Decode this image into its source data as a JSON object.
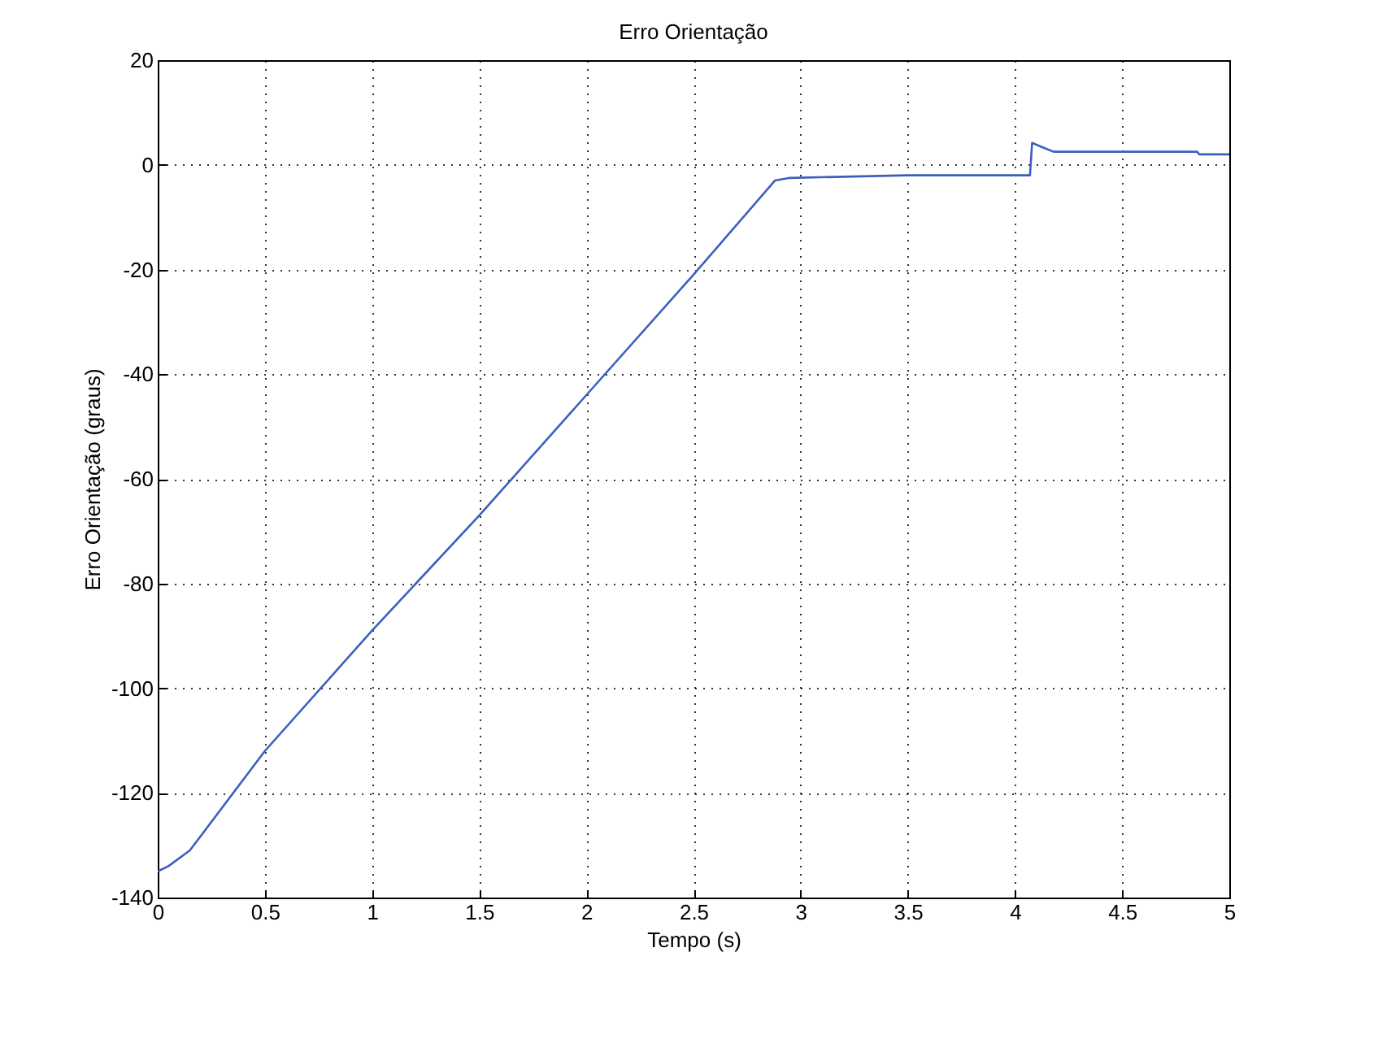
{
  "chart_data": {
    "type": "line",
    "title": "Erro Orientação",
    "xlabel": "Tempo (s)",
    "ylabel": "Erro Orientação (graus)",
    "series": [
      {
        "color": "#3b5fbf",
        "x": [
          0,
          0.05,
          0.15,
          0.5,
          1,
          1.5,
          2,
          2.5,
          2.88,
          2.95,
          3.5,
          4.05,
          4.07,
          4.08,
          4.12,
          4.18,
          4.85,
          4.86,
          5
        ],
        "values": [
          -135,
          -134,
          -131,
          -112,
          -89,
          -67,
          -44,
          -21,
          -3,
          -2.5,
          -2,
          -2,
          -2,
          4.2,
          3.5,
          2.5,
          2.5,
          2,
          2
        ]
      }
    ],
    "xlim": [
      0,
      5
    ],
    "xticks": [
      0,
      0.5,
      1,
      1.5,
      2,
      2.5,
      3,
      3.5,
      4,
      4.5,
      5
    ],
    "ylim": [
      -140,
      20
    ],
    "yticks": [
      -140,
      -120,
      -100,
      -80,
      -60,
      -40,
      -20,
      0,
      20
    ],
    "grid": true,
    "legend": false
  }
}
